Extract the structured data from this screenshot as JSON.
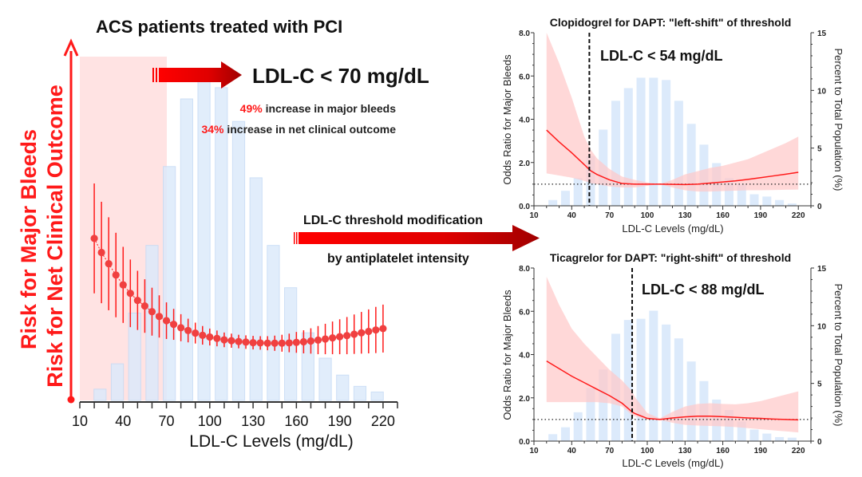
{
  "colors": {
    "red": "#ff1a1a",
    "dark_red": "#a00000",
    "bar": "#dceafb",
    "bar_stroke": "#c5daf5",
    "band": "#ffc8c8",
    "zone": "#ffe0e0"
  },
  "main": {
    "title": "ACS patients treated with PCI",
    "y_label_1": "Risk for Major Bleeds",
    "y_label_2": "Risk for Net Clinical Outcome",
    "threshold_label": "LDL-C < 70 mg/dL",
    "stat1_pct": "49%",
    "stat1_text": " increase in major bleeds",
    "stat2_pct": "34%",
    "stat2_text": " increase in net clinical outcome",
    "modification_line1": "LDL-C threshold modification",
    "modification_line2": "by antiplatelet intensity"
  },
  "chart_data": [
    {
      "type": "bar+scatter",
      "title": "ACS patients treated with PCI",
      "xlabel": "LDL-C Levels (mg/dL)",
      "ylabel": "Risk for Major Bleeds / Risk for Net Clinical Outcome",
      "xlim": [
        10,
        230
      ],
      "ylim": [
        0,
        12.2
      ],
      "xticks": [
        "10",
        "40",
        "70",
        "100",
        "130",
        "160",
        "190",
        "220"
      ],
      "shaded_region": [
        10,
        70
      ],
      "bars": {
        "x": [
          24,
          36,
          48,
          60,
          72,
          84,
          96,
          108,
          120,
          132,
          144,
          156,
          168,
          180,
          192,
          204,
          216
        ],
        "values": [
          0.4,
          1.3,
          3.1,
          5.5,
          8.3,
          10.7,
          11.4,
          11.1,
          9.9,
          7.9,
          5.5,
          4.0,
          2.4,
          1.5,
          0.9,
          0.5,
          0.3
        ]
      },
      "risk": {
        "x": [
          20,
          25,
          30,
          35,
          40,
          45,
          50,
          55,
          60,
          65,
          70,
          75,
          80,
          85,
          90,
          95,
          100,
          105,
          110,
          115,
          120,
          125,
          130,
          135,
          140,
          145,
          150,
          155,
          160,
          165,
          170,
          175,
          180,
          185,
          190,
          195,
          200,
          205,
          210,
          215,
          220
        ],
        "y": [
          5.75,
          5.25,
          4.85,
          4.45,
          4.1,
          3.8,
          3.55,
          3.35,
          3.15,
          2.98,
          2.83,
          2.7,
          2.58,
          2.48,
          2.39,
          2.31,
          2.25,
          2.2,
          2.15,
          2.12,
          2.09,
          2.07,
          2.05,
          2.04,
          2.03,
          2.03,
          2.03,
          2.04,
          2.06,
          2.08,
          2.11,
          2.14,
          2.18,
          2.22,
          2.26,
          2.3,
          2.35,
          2.4,
          2.45,
          2.5,
          2.55
        ],
        "err": [
          1.95,
          1.8,
          1.65,
          1.5,
          1.35,
          1.2,
          1.05,
          0.95,
          0.85,
          0.75,
          0.65,
          0.55,
          0.48,
          0.42,
          0.37,
          0.33,
          0.3,
          0.28,
          0.26,
          0.25,
          0.24,
          0.24,
          0.24,
          0.24,
          0.25,
          0.27,
          0.3,
          0.33,
          0.37,
          0.41,
          0.45,
          0.5,
          0.54,
          0.58,
          0.62,
          0.66,
          0.7,
          0.74,
          0.78,
          0.82,
          0.85
        ]
      }
    },
    {
      "type": "line+bar",
      "title": "Clopidogrel for DAPT: \"left-shift\" of threshold",
      "threshold_label": "LDL-C < 54 mg/dL",
      "threshold": 54,
      "xlabel": "LDL-C Levels (mg/dL)",
      "ylabel": "Odds Ratio for Major Bleeds",
      "y2label": "Percent to Total Population (%)",
      "xlim": [
        10,
        230
      ],
      "ylim": [
        0,
        8
      ],
      "y2lim": [
        0,
        15
      ],
      "xticks": [
        "10",
        "40",
        "70",
        "100",
        "130",
        "160",
        "190",
        "220"
      ],
      "yticks": [
        "0.0",
        "2.0",
        "4.0",
        "6.0",
        "8.0"
      ],
      "y2ticks": [
        "0",
        "5",
        "10",
        "15"
      ],
      "reference_or": 1,
      "bars": {
        "x": [
          25,
          35,
          45,
          55,
          65,
          75,
          85,
          95,
          105,
          115,
          125,
          135,
          145,
          155,
          165,
          175,
          185,
          195,
          205,
          215
        ],
        "values": [
          0.5,
          1.3,
          2.4,
          4.3,
          6.6,
          9.1,
          10.2,
          11.1,
          11.1,
          10.9,
          9.1,
          7.1,
          5.3,
          3.7,
          2.4,
          1.9,
          1.0,
          0.8,
          0.5,
          0.2
        ]
      },
      "curve": {
        "x": [
          20,
          30,
          40,
          50,
          55,
          60,
          70,
          80,
          90,
          100,
          110,
          120,
          130,
          140,
          150,
          160,
          170,
          180,
          190,
          200,
          210,
          220
        ],
        "or": [
          3.5,
          2.95,
          2.45,
          1.9,
          1.62,
          1.45,
          1.2,
          1.03,
          1.0,
          1.0,
          1.0,
          0.99,
          0.98,
          1.0,
          1.05,
          1.1,
          1.15,
          1.22,
          1.3,
          1.38,
          1.46,
          1.55
        ],
        "lower": [
          1.5,
          1.4,
          1.3,
          1.15,
          1.05,
          1.0,
          0.9,
          0.85,
          0.85,
          0.92,
          1.0,
          0.85,
          0.72,
          0.66,
          0.66,
          0.68,
          0.7,
          0.72,
          0.72,
          0.73,
          0.74,
          0.75
        ],
        "upper": [
          8.0,
          6.6,
          5.0,
          3.2,
          2.6,
          2.2,
          1.7,
          1.35,
          1.2,
          1.08,
          1.0,
          1.2,
          1.45,
          1.6,
          1.75,
          1.85,
          2.0,
          2.15,
          2.4,
          2.65,
          2.9,
          3.2
        ]
      }
    },
    {
      "type": "line+bar",
      "title": "Ticagrelor for DAPT:  \"right-shift\" of threshold",
      "threshold_label": "LDL-C < 88 mg/dL",
      "threshold": 88,
      "xlabel": "LDL-C Levels (mg/dL)",
      "ylabel": "Odds Ratio for Major Bleeds",
      "y2label": "Percent to Total Population (%)",
      "xlim": [
        10,
        230
      ],
      "ylim": [
        0,
        8
      ],
      "y2lim": [
        0,
        15
      ],
      "xticks": [
        "10",
        "40",
        "70",
        "100",
        "130",
        "160",
        "190",
        "220"
      ],
      "yticks": [
        "0.0",
        "2.0",
        "4.0",
        "6.0",
        "8.0"
      ],
      "y2ticks": [
        "0",
        "5",
        "10",
        "15"
      ],
      "reference_or": 1,
      "bars": {
        "x": [
          25,
          35,
          45,
          55,
          65,
          75,
          85,
          95,
          105,
          115,
          125,
          135,
          145,
          155,
          165,
          175,
          185,
          195,
          205,
          215
        ],
        "values": [
          0.6,
          1.2,
          2.5,
          4.6,
          6.2,
          9.3,
          10.5,
          10.6,
          11.3,
          10.1,
          8.9,
          6.9,
          5.2,
          3.6,
          2.7,
          1.7,
          1.0,
          0.65,
          0.35,
          0.3
        ]
      },
      "curve": {
        "x": [
          20,
          30,
          40,
          50,
          60,
          70,
          80,
          88,
          90,
          100,
          110,
          120,
          130,
          140,
          150,
          160,
          170,
          180,
          190,
          200,
          210,
          220
        ],
        "or": [
          3.7,
          3.35,
          3.0,
          2.7,
          2.4,
          2.1,
          1.75,
          1.35,
          1.28,
          1.05,
          1.0,
          1.07,
          1.12,
          1.15,
          1.15,
          1.13,
          1.1,
          1.07,
          1.05,
          1.02,
          1.0,
          0.98
        ],
        "lower": [
          1.8,
          1.8,
          1.8,
          1.8,
          1.8,
          1.75,
          1.6,
          1.2,
          1.15,
          1.0,
          0.98,
          0.85,
          0.75,
          0.72,
          0.7,
          0.68,
          0.65,
          0.6,
          0.55,
          0.5,
          0.45,
          0.4
        ],
        "upper": [
          7.6,
          6.3,
          5.2,
          4.5,
          3.9,
          3.3,
          2.8,
          2.3,
          2.05,
          1.3,
          1.05,
          1.35,
          1.6,
          1.72,
          1.75,
          1.72,
          1.7,
          1.75,
          1.85,
          2.0,
          2.15,
          2.3
        ]
      }
    }
  ]
}
